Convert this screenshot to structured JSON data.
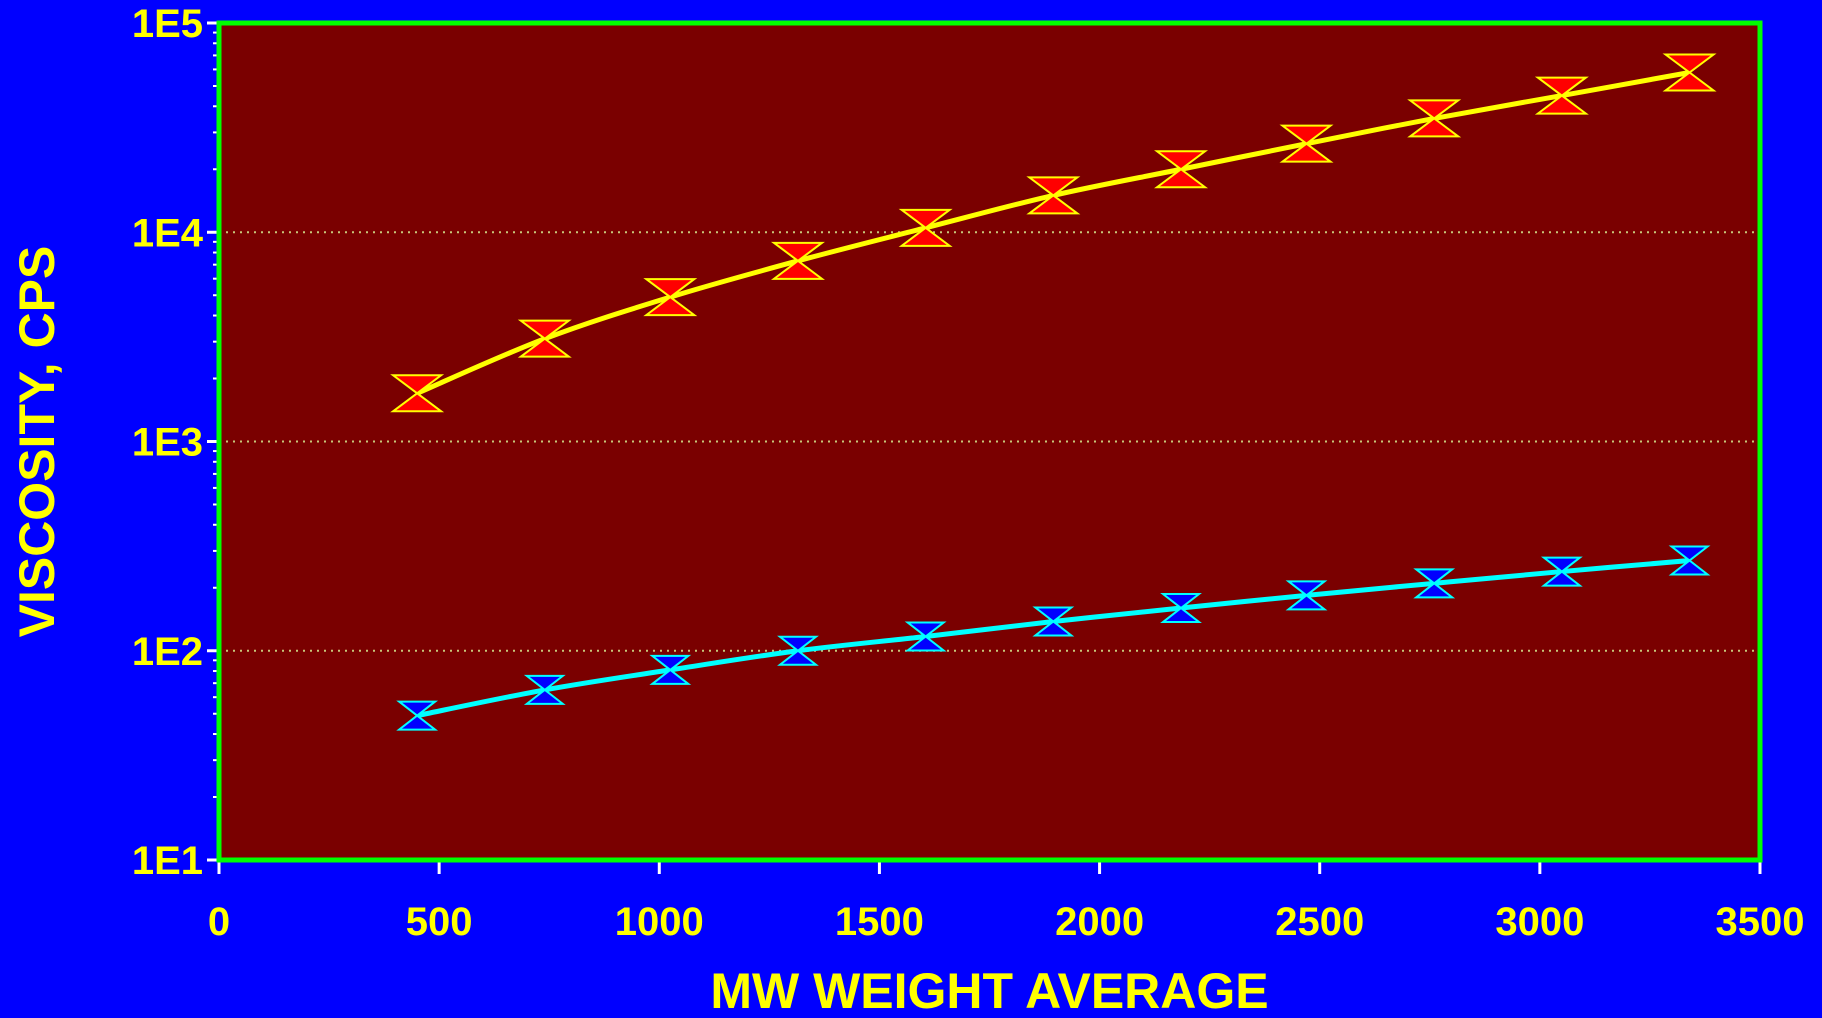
{
  "chart_data": {
    "type": "line",
    "title": "",
    "xlabel": "MW WEIGHT AVERAGE",
    "ylabel": "VISCOSITY, CPS",
    "xlim": [
      0,
      3500
    ],
    "ylim": [
      10,
      100000
    ],
    "yscale": "log",
    "x_ticks": [
      "0",
      "500",
      "1000",
      "1500",
      "2000",
      "2500",
      "3000",
      "3500"
    ],
    "y_ticks": [
      "1E1",
      "1E2",
      "1E3",
      "1E4",
      "1E5"
    ],
    "grid": "horizontal dotted at major y ticks",
    "legend": "none",
    "colors": {
      "background": "#0000ff",
      "plot_area": "#7a0000",
      "frame": "#00ff00",
      "text": "#ffff00",
      "grid": "#c8c87a"
    },
    "series": [
      {
        "line_color": "#ffff00",
        "marker_color": "#ff0000",
        "marker": "hourglass",
        "x": [
          450,
          740,
          1025,
          1315,
          1605,
          1895,
          2185,
          2470,
          2760,
          3050,
          3340
        ],
        "y": [
          1700,
          3100,
          4900,
          7300,
          10500,
          15000,
          20000,
          26500,
          35000,
          45000,
          58000
        ]
      },
      {
        "line_color": "#00ffff",
        "marker_color": "#0000ff",
        "marker": "hourglass",
        "x": [
          450,
          740,
          1025,
          1315,
          1605,
          1895,
          2185,
          2470,
          2760,
          3050,
          3340
        ],
        "y": [
          49,
          65,
          81,
          100,
          117,
          138,
          160,
          184,
          210,
          239,
          270
        ]
      }
    ]
  }
}
